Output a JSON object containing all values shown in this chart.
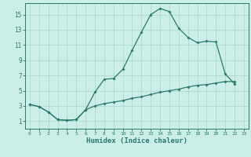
{
  "xlabel": "Humidex (Indice chaleur)",
  "line1_x": [
    0,
    1,
    2,
    3,
    4,
    5,
    6,
    7,
    8,
    9,
    10,
    11,
    12,
    13,
    14,
    15,
    16,
    17,
    18,
    19,
    20,
    21,
    22,
    23
  ],
  "line1_y": [
    3.2,
    2.9,
    2.2,
    1.2,
    1.1,
    1.2,
    2.5,
    4.8,
    6.5,
    6.6,
    7.8,
    10.3,
    12.7,
    15.0,
    15.8,
    15.4,
    13.2,
    12.0,
    11.3,
    11.5,
    11.4,
    7.2,
    5.9,
    null
  ],
  "line2_x": [
    0,
    1,
    2,
    3,
    4,
    5,
    6,
    7,
    8,
    9,
    10,
    11,
    12,
    13,
    14,
    15,
    16,
    17,
    18,
    19,
    20,
    21,
    22,
    23
  ],
  "line2_y": [
    3.2,
    2.9,
    2.2,
    1.2,
    1.1,
    1.2,
    2.5,
    3.0,
    3.3,
    3.5,
    3.7,
    4.0,
    4.2,
    4.5,
    4.8,
    5.0,
    5.2,
    5.5,
    5.7,
    5.8,
    6.0,
    6.2,
    6.2,
    null
  ],
  "line_color": "#2a7a6a",
  "bg_color": "#cceee8",
  "grid_color": "#aad4cc",
  "xlim": [
    -0.5,
    23.5
  ],
  "ylim": [
    0,
    16.5
  ],
  "yticks": [
    1,
    3,
    5,
    7,
    9,
    11,
    13,
    15
  ],
  "xticks": [
    0,
    1,
    2,
    3,
    4,
    5,
    6,
    7,
    8,
    9,
    10,
    11,
    12,
    13,
    14,
    15,
    16,
    17,
    18,
    19,
    20,
    21,
    22,
    23
  ]
}
